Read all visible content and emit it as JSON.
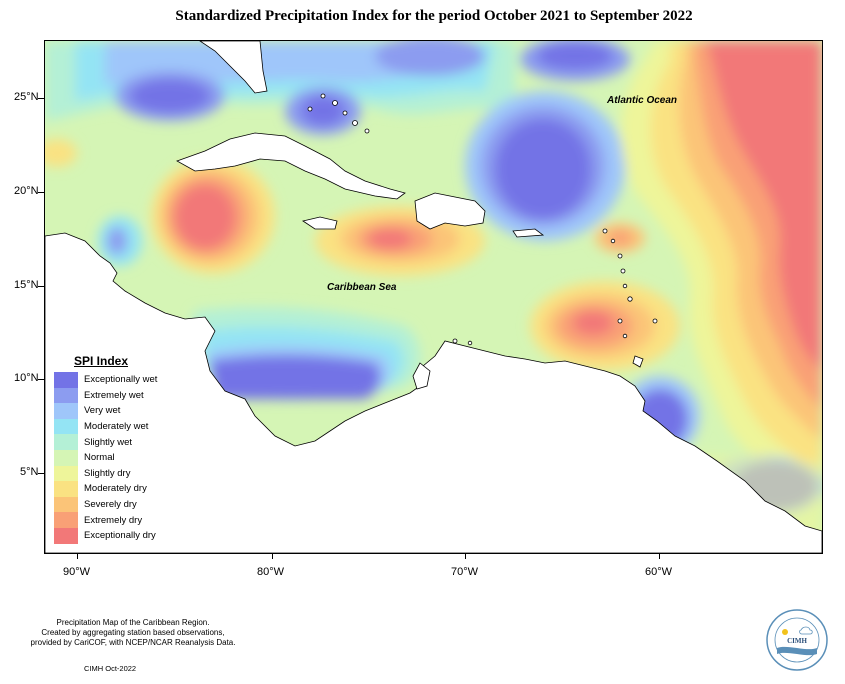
{
  "title": "Standardized Precipitation Index for the period October 2021 to September 2022",
  "map": {
    "latitude_labels": [
      "25°N",
      "20°N",
      "15°N",
      "10°N",
      "5°N"
    ],
    "longitude_labels": [
      "90°W",
      "80°W",
      "70°W",
      "60°W"
    ],
    "ocean_labels": {
      "atlantic": "Atlantic Ocean",
      "caribbean": "Caribbean Sea"
    }
  },
  "legend": {
    "title": "SPI Index",
    "items": [
      {
        "label": "Exceptionally wet",
        "color": "#7373e6"
      },
      {
        "label": "Extremely wet",
        "color": "#8c9cf0"
      },
      {
        "label": "Very wet",
        "color": "#9fc6fa"
      },
      {
        "label": "Moderately wet",
        "color": "#94e4f4"
      },
      {
        "label": "Slightly wet",
        "color": "#b4f0d6"
      },
      {
        "label": "Normal",
        "color": "#d5f5b5"
      },
      {
        "label": "Slightly dry",
        "color": "#eef59a"
      },
      {
        "label": "Moderately dry",
        "color": "#fae282"
      },
      {
        "label": "Severely dry",
        "color": "#fbc478"
      },
      {
        "label": "Extremely dry",
        "color": "#f9a076"
      },
      {
        "label": "Exceptionally dry",
        "color": "#f27878"
      }
    ]
  },
  "footer": {
    "note_lines": [
      "Precipitation Map of the Caribbean Region.",
      "Created by aggregating station based observations,",
      "provided by CariCOF, with NCEP/NCAR Reanalysis Data."
    ],
    "credit": "CIMH Oct-2022",
    "logo_text": "CIMH"
  }
}
